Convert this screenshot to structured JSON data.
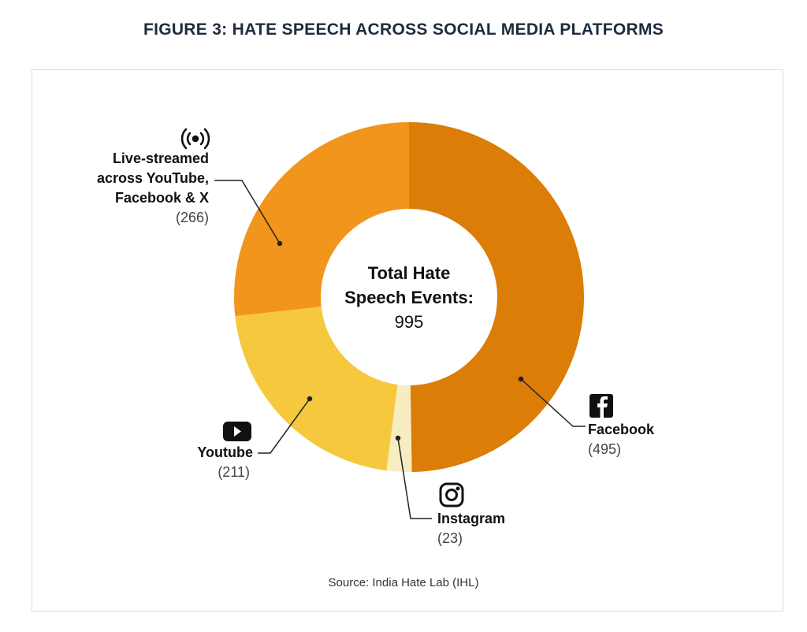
{
  "title": "FIGURE 3: HATE SPEECH ACROSS SOCIAL MEDIA PLATFORMS",
  "source": "Source: India Hate Lab (IHL)",
  "chart_data": {
    "type": "pie",
    "donut": true,
    "title": "FIGURE 3: HATE SPEECH ACROSS SOCIAL MEDIA PLATFORMS",
    "center_label": {
      "line1": "Total Hate",
      "line2": "Speech Events:",
      "value": "995"
    },
    "categories": [
      "Facebook",
      "Instagram",
      "Youtube",
      "Live-streamed across YouTube, Facebook & X"
    ],
    "values": [
      495,
      23,
      211,
      266
    ],
    "colors": [
      "#dc7d08",
      "#f8edc2",
      "#f6c83e",
      "#f1951c"
    ],
    "labels": [
      {
        "name": "Facebook",
        "value": "(495)",
        "icon": "facebook-icon"
      },
      {
        "name": "Instagram",
        "value": "(23)",
        "icon": "instagram-icon"
      },
      {
        "name": "Youtube",
        "value": "(211)",
        "icon": "youtube-icon"
      },
      {
        "line1": "Live-streamed",
        "line2": "across YouTube,",
        "line3": "Facebook & X",
        "value": "(266)",
        "icon": "live-broadcast-icon"
      }
    ]
  }
}
